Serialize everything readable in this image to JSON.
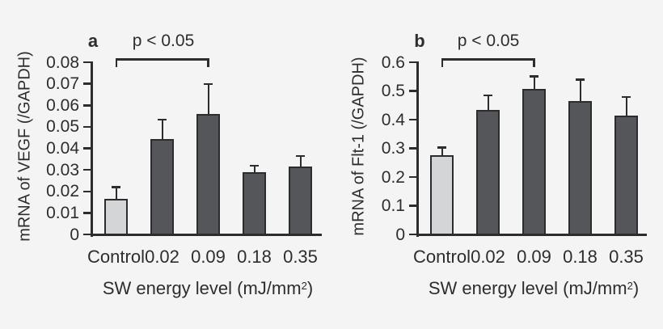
{
  "figure": {
    "background_color": "#f4f4f5",
    "ink_color": "#2d2d2f",
    "bar_color": "#55565a",
    "control_bar_color": "#d3d5d7",
    "bar_border_color": "#2b2c2e",
    "shared_xlabel": {
      "prefix": "SW energy level (mJ/mm",
      "superscript": "2",
      "suffix": ")"
    }
  },
  "chart_data": [
    {
      "type": "bar",
      "panel_label": "a",
      "title": "",
      "ylabel": "mRNA of VEGF (/GAPDH)",
      "xlabel": "SW energy level (mJ/mm²)",
      "categories": [
        "Control",
        "0.02",
        "0.09",
        "0.18",
        "0.35"
      ],
      "values": [
        0.0165,
        0.0445,
        0.056,
        0.029,
        0.0315
      ],
      "errors_plus": [
        0.0055,
        0.009,
        0.014,
        0.003,
        0.005
      ],
      "ylim": [
        0,
        0.08
      ],
      "yticks": [
        0,
        0.01,
        0.02,
        0.03,
        0.04,
        0.05,
        0.06,
        0.07,
        0.08
      ],
      "ytick_labels": [
        "0",
        "0.01",
        "0.02",
        "0.03",
        "0.04",
        "0.05",
        "0.06",
        "0.07",
        "0.08"
      ],
      "grid": false,
      "legend": "none",
      "control_bar_index": 0,
      "annotation": {
        "label": "p < 0.05",
        "from_category": "Control",
        "to_category": "0.09",
        "from_index": 0,
        "to_index": 2
      }
    },
    {
      "type": "bar",
      "panel_label": "b",
      "title": "",
      "ylabel": "mRNA of Flt-1 (/GAPDH)",
      "xlabel": "SW energy level (mJ/mm²)",
      "categories": [
        "Control",
        "0.02",
        "0.09",
        "0.18",
        "0.35"
      ],
      "values": [
        0.277,
        0.435,
        0.507,
        0.465,
        0.415
      ],
      "errors_plus": [
        0.027,
        0.05,
        0.045,
        0.075,
        0.065
      ],
      "ylim": [
        0,
        0.6
      ],
      "yticks": [
        0,
        0.1,
        0.2,
        0.3,
        0.4,
        0.5,
        0.6
      ],
      "ytick_labels": [
        "0",
        "0.1",
        "0.2",
        "0.3",
        "0.4",
        "0.5",
        "0.6"
      ],
      "grid": false,
      "legend": "none",
      "control_bar_index": 0,
      "annotation": {
        "label": "p < 0.05",
        "from_category": "Control",
        "to_category": "0.09",
        "from_index": 0,
        "to_index": 2
      }
    }
  ]
}
